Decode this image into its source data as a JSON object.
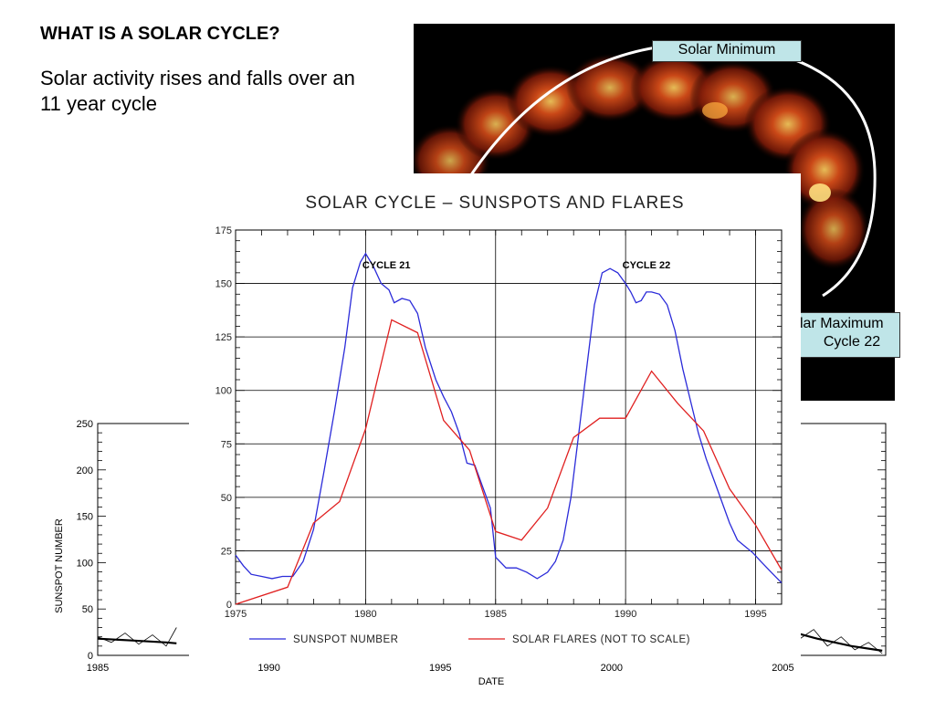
{
  "slide": {
    "title": "WHAT IS A SOLAR CYCLE?",
    "text": "Solar activity rises and falls over an 11 year cycle"
  },
  "image_labels": {
    "minimum": "Solar Minimum",
    "maximum_line1": "Solar Maximum",
    "maximum_line2": "Cycle 22"
  },
  "chart_data": [
    {
      "type": "line",
      "title": "SOLAR CYCLE – SUNSPOTS AND FLARES",
      "xlim": [
        1975,
        1996
      ],
      "ylim": [
        0,
        175
      ],
      "xticks": [
        "1975",
        "1980",
        "1985",
        "1990",
        "1995"
      ],
      "yticks": [
        "0",
        "25",
        "50",
        "75",
        "100",
        "125",
        "150",
        "175"
      ],
      "grid": true,
      "legend_position": "bottom",
      "annotations": [
        {
          "text": "CYCLE 21",
          "x": 1980.8,
          "y": 157
        },
        {
          "text": "CYCLE 22",
          "x": 1990.8,
          "y": 157
        }
      ],
      "series": [
        {
          "name": "SUNSPOT NUMBER",
          "color": "#2b2bd9",
          "points": [
            [
              1975.0,
              23
            ],
            [
              1975.3,
              18
            ],
            [
              1975.6,
              14
            ],
            [
              1976.0,
              13
            ],
            [
              1976.4,
              12
            ],
            [
              1976.8,
              13
            ],
            [
              1977.2,
              13
            ],
            [
              1977.6,
              20
            ],
            [
              1978.0,
              35
            ],
            [
              1978.4,
              62
            ],
            [
              1978.8,
              90
            ],
            [
              1979.2,
              120
            ],
            [
              1979.5,
              148
            ],
            [
              1979.8,
              160
            ],
            [
              1980.0,
              164
            ],
            [
              1980.3,
              158
            ],
            [
              1980.6,
              150
            ],
            [
              1980.9,
              147
            ],
            [
              1981.1,
              141
            ],
            [
              1981.4,
              143
            ],
            [
              1981.7,
              142
            ],
            [
              1982.0,
              136
            ],
            [
              1982.3,
              120
            ],
            [
              1982.7,
              105
            ],
            [
              1983.0,
              97
            ],
            [
              1983.3,
              90
            ],
            [
              1983.6,
              80
            ],
            [
              1983.9,
              66
            ],
            [
              1984.2,
              65
            ],
            [
              1984.5,
              55
            ],
            [
              1984.8,
              45
            ],
            [
              1985.0,
              22
            ],
            [
              1985.4,
              17
            ],
            [
              1985.8,
              17
            ],
            [
              1986.2,
              15
            ],
            [
              1986.6,
              12
            ],
            [
              1987.0,
              15
            ],
            [
              1987.3,
              20
            ],
            [
              1987.6,
              30
            ],
            [
              1987.9,
              50
            ],
            [
              1988.2,
              80
            ],
            [
              1988.5,
              110
            ],
            [
              1988.8,
              140
            ],
            [
              1989.1,
              155
            ],
            [
              1989.4,
              157
            ],
            [
              1989.7,
              155
            ],
            [
              1990.0,
              150
            ],
            [
              1990.2,
              146
            ],
            [
              1990.4,
              141
            ],
            [
              1990.6,
              142
            ],
            [
              1990.8,
              146
            ],
            [
              1991.0,
              146
            ],
            [
              1991.3,
              145
            ],
            [
              1991.6,
              140
            ],
            [
              1991.9,
              128
            ],
            [
              1992.2,
              110
            ],
            [
              1992.5,
              95
            ],
            [
              1992.8,
              80
            ],
            [
              1993.1,
              68
            ],
            [
              1993.4,
              58
            ],
            [
              1993.7,
              48
            ],
            [
              1994.0,
              38
            ],
            [
              1994.3,
              30
            ],
            [
              1994.6,
              27
            ],
            [
              1994.9,
              24
            ],
            [
              1995.2,
              20
            ],
            [
              1995.6,
              15
            ],
            [
              1996.0,
              10
            ]
          ]
        },
        {
          "name": "SOLAR FLARES (NOT TO SCALE)",
          "color": "#e02020",
          "points": [
            [
              1975.0,
              0
            ],
            [
              1977.0,
              8
            ],
            [
              1978.0,
              38
            ],
            [
              1979.0,
              48
            ],
            [
              1980.0,
              82
            ],
            [
              1981.0,
              133
            ],
            [
              1982.0,
              127
            ],
            [
              1983.0,
              86
            ],
            [
              1984.0,
              72
            ],
            [
              1985.0,
              34
            ],
            [
              1986.0,
              30
            ],
            [
              1987.0,
              45
            ],
            [
              1988.0,
              78
            ],
            [
              1989.0,
              87
            ],
            [
              1990.0,
              87
            ],
            [
              1991.0,
              109
            ],
            [
              1992.0,
              94
            ],
            [
              1993.0,
              81
            ],
            [
              1994.0,
              54
            ],
            [
              1995.0,
              37
            ],
            [
              1996.0,
              16
            ]
          ]
        }
      ]
    },
    {
      "type": "line",
      "xlabel": "DATE",
      "ylabel": "SUNSPOT NUMBER",
      "xlim": [
        1985,
        2008
      ],
      "ylim": [
        0,
        250
      ],
      "xticks": [
        "1985",
        "1990",
        "1995",
        "2000",
        "2005"
      ],
      "yticks": [
        "0",
        "50",
        "100",
        "150",
        "200",
        "250"
      ],
      "series": [
        {
          "name": "",
          "color": "#000000",
          "points": [
            [
              1985.0,
              20
            ],
            [
              1985.4,
              14
            ],
            [
              1985.8,
              24
            ],
            [
              1986.2,
              12
            ],
            [
              1986.6,
              22
            ],
            [
              1987.0,
              10
            ],
            [
              1987.3,
              30
            ],
            [
              2004.3,
              38
            ],
            [
              2004.7,
              24
            ],
            [
              2005.1,
              34
            ],
            [
              2005.5,
              18
            ],
            [
              2005.9,
              28
            ],
            [
              2006.3,
              10
            ],
            [
              2006.7,
              20
            ],
            [
              2007.1,
              6
            ],
            [
              2007.5,
              14
            ],
            [
              2007.9,
              2
            ]
          ]
        },
        {
          "name": "",
          "color": "#000000",
          "points": [
            [
              1985.0,
              18
            ],
            [
              1986.0,
              16
            ],
            [
              1987.0,
              14
            ],
            [
              1987.3,
              13
            ],
            [
              2004.3,
              32
            ],
            [
              2005.0,
              28
            ],
            [
              2006.0,
              18
            ],
            [
              2007.0,
              10
            ],
            [
              2007.9,
              5
            ]
          ]
        }
      ]
    }
  ]
}
